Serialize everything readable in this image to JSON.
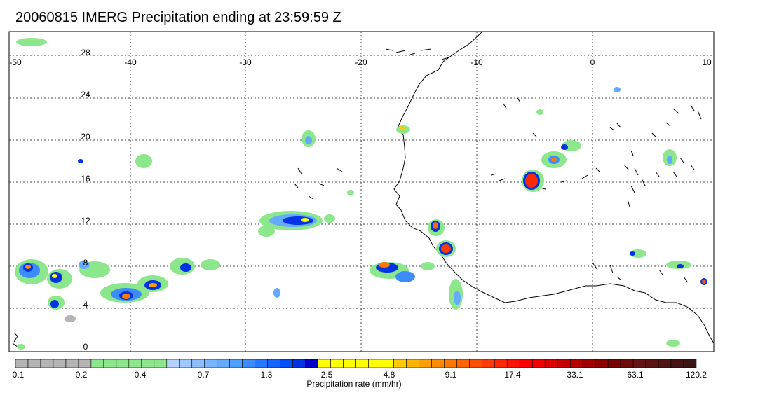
{
  "title": "20060815 IMERG Precipitation ending at 23:59:59 Z",
  "lon_labels": [
    "-50",
    "-40",
    "-30",
    "-20",
    "-10",
    "0",
    "10"
  ],
  "lat_labels": [
    "28",
    "24",
    "20",
    "16",
    "12",
    "8",
    "4",
    "0"
  ],
  "colorbar": {
    "title": "Precipitation rate (mm/hr)",
    "tick_labels": [
      "0.1",
      "0.2",
      "0.4",
      "0.7",
      "1.3",
      "2.5",
      "4.8",
      "9.1",
      "17.4",
      "33.1",
      "63.1",
      "120.2"
    ],
    "colors": [
      "#b4b4b4",
      "#b4b4b4",
      "#b4b4b4",
      "#b4b4b4",
      "#b4b4b4",
      "#b4b4b4",
      "#8ce68c",
      "#8ce68c",
      "#8ce68c",
      "#8ce68c",
      "#8ce68c",
      "#8ce68c",
      "#b4d2ff",
      "#a0c8ff",
      "#8cbeff",
      "#78b4ff",
      "#64aaff",
      "#50a0ff",
      "#3c8cff",
      "#2878ff",
      "#1464ff",
      "#0050ff",
      "#0032e6",
      "#0000c8",
      "#ffff00",
      "#ffff00",
      "#ffff00",
      "#ffff00",
      "#ffff00",
      "#ffff00",
      "#ffc800",
      "#ffb400",
      "#ffa000",
      "#ff8c00",
      "#ff7800",
      "#ff6400",
      "#ff5000",
      "#ff3c00",
      "#ff2800",
      "#ff1400",
      "#ff0000",
      "#f00000",
      "#dc0000",
      "#c80000",
      "#b40000",
      "#a00000",
      "#8c0000",
      "#780000",
      "#6e0a0a",
      "#641414",
      "#5a1414",
      "#501414",
      "#461414",
      "#3c1414"
    ]
  }
}
